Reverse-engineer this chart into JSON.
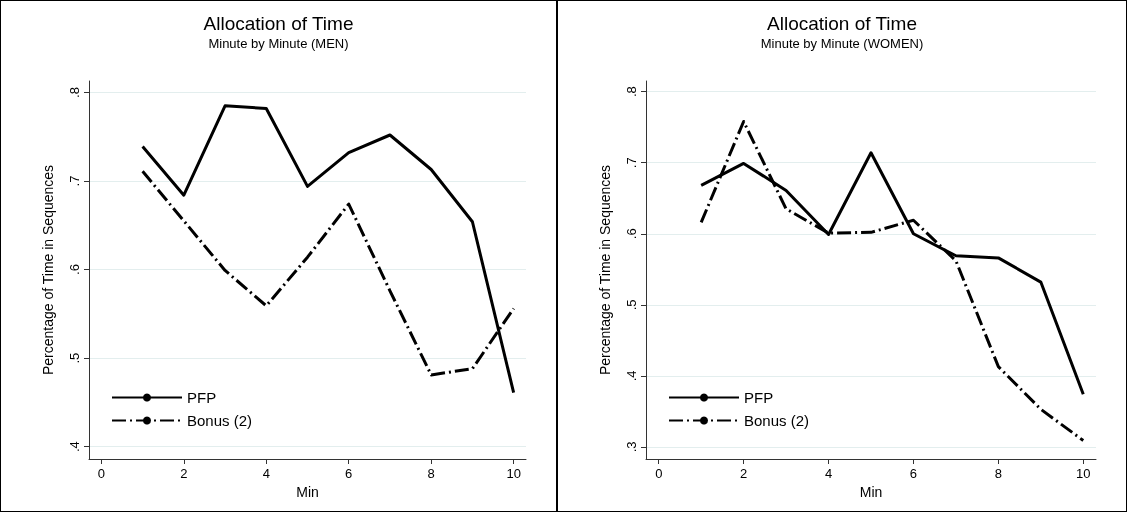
{
  "chart_data": [
    {
      "type": "line",
      "title": "Allocation of Time",
      "subtitle": "Minute by Minute (MEN)",
      "xlabel": "Min",
      "ylabel": "Percentage of Time in Sequences",
      "x": [
        1,
        2,
        3,
        4,
        5,
        6,
        7,
        8,
        9,
        10
      ],
      "series": [
        {
          "name": "PFP",
          "color": "#000000",
          "line_style": "solid",
          "values": [
            0.739,
            0.684,
            0.785,
            0.782,
            0.694,
            0.732,
            0.752,
            0.713,
            0.654,
            0.461
          ]
        },
        {
          "name": "Bonus (2)",
          "color": "#000000",
          "line_style": "dashed",
          "values": [
            0.711,
            0.655,
            0.599,
            0.559,
            0.614,
            0.674,
            0.576,
            0.481,
            0.488,
            0.556
          ]
        }
      ],
      "xlim": [
        -0.3,
        10.3
      ],
      "xticks": [
        0,
        2,
        4,
        6,
        8,
        10
      ],
      "ylim": [
        0.386,
        0.813
      ],
      "yticks": [
        {
          "value": 0.4,
          "label": ".4"
        },
        {
          "value": 0.5,
          "label": ".5"
        },
        {
          "value": 0.6,
          "label": ".6"
        },
        {
          "value": 0.7,
          "label": ".7"
        },
        {
          "value": 0.8,
          "label": ".8"
        }
      ],
      "grid": "y",
      "legend": "bottom left",
      "marker": "none"
    },
    {
      "type": "line",
      "title": "Allocation of Time",
      "subtitle": "Minute by Minute (WOMEN)",
      "xlabel": "Min",
      "ylabel": "Percentage of Time in Sequences",
      "x": [
        1,
        2,
        3,
        4,
        5,
        6,
        7,
        8,
        9,
        10
      ],
      "series": [
        {
          "name": "PFP",
          "color": "#000000",
          "line_style": "solid",
          "values": [
            0.668,
            0.699,
            0.661,
            0.599,
            0.714,
            0.6,
            0.569,
            0.566,
            0.532,
            0.374
          ]
        },
        {
          "name": "Bonus (2)",
          "color": "#000000",
          "line_style": "dashed",
          "values": [
            0.616,
            0.758,
            0.635,
            0.601,
            0.602,
            0.619,
            0.562,
            0.413,
            0.353,
            0.309
          ]
        }
      ],
      "xlim": [
        -0.3,
        10.3
      ],
      "xticks": [
        0,
        2,
        4,
        6,
        8,
        10
      ],
      "ylim": [
        0.283,
        0.815
      ],
      "yticks": [
        {
          "value": 0.3,
          "label": ".3"
        },
        {
          "value": 0.4,
          "label": ".4"
        },
        {
          "value": 0.5,
          "label": ".5"
        },
        {
          "value": 0.6,
          "label": ".6"
        },
        {
          "value": 0.7,
          "label": ".7"
        },
        {
          "value": 0.8,
          "label": ".8"
        }
      ],
      "grid": "y",
      "legend": "bottom left",
      "marker": "none"
    }
  ]
}
